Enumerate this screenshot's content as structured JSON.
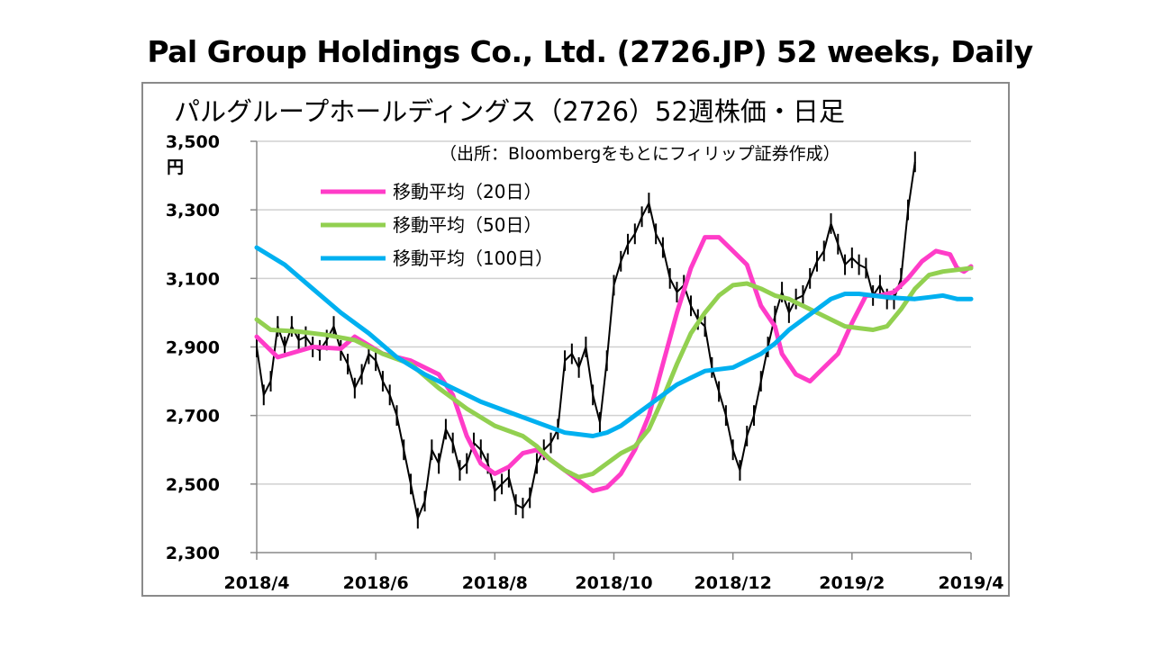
{
  "header": {
    "title": "Pal Group Holdings Co., Ltd. (2726.JP) 52 weeks, Daily"
  },
  "chart_data": {
    "type": "line",
    "title": "パルグループホールディングス（2726）52週株価・日足",
    "source_note": "（出所：Bloombergをもとにフィリップ証券作成）",
    "y_unit": "円",
    "ylim": [
      2300,
      3500
    ],
    "y_ticks": [
      2300,
      2500,
      2700,
      2900,
      3100,
      3300,
      3500
    ],
    "y_tick_labels": [
      "2,300",
      "2,500",
      "2,700",
      "2,900",
      "3,100",
      "3,300",
      "3,500"
    ],
    "x_tick_labels": [
      "2018/4",
      "2018/6",
      "2018/8",
      "2018/10",
      "2018/12",
      "2019/2",
      "2019/4"
    ],
    "grid": "horizontal",
    "legend_position": "top-left",
    "series": [
      {
        "name": "移動平均（20日）",
        "color": "#ff3cc8",
        "points": [
          [
            0,
            2930
          ],
          [
            3,
            2870
          ],
          [
            8,
            2900
          ],
          [
            12,
            2895
          ],
          [
            14,
            2930
          ],
          [
            18,
            2880
          ],
          [
            22,
            2860
          ],
          [
            26,
            2820
          ],
          [
            28,
            2760
          ],
          [
            30,
            2640
          ],
          [
            32,
            2560
          ],
          [
            34,
            2530
          ],
          [
            36,
            2550
          ],
          [
            38,
            2590
          ],
          [
            40,
            2600
          ],
          [
            42,
            2570
          ],
          [
            44,
            2540
          ],
          [
            46,
            2510
          ],
          [
            48,
            2480
          ],
          [
            50,
            2490
          ],
          [
            52,
            2530
          ],
          [
            54,
            2600
          ],
          [
            56,
            2700
          ],
          [
            58,
            2850
          ],
          [
            60,
            3000
          ],
          [
            62,
            3130
          ],
          [
            64,
            3220
          ],
          [
            66,
            3220
          ],
          [
            68,
            3180
          ],
          [
            70,
            3140
          ],
          [
            72,
            3020
          ],
          [
            74,
            2960
          ],
          [
            75,
            2880
          ],
          [
            77,
            2820
          ],
          [
            79,
            2800
          ],
          [
            81,
            2840
          ],
          [
            83,
            2880
          ],
          [
            85,
            2970
          ],
          [
            87,
            3050
          ],
          [
            89,
            3050
          ],
          [
            91,
            3060
          ],
          [
            93,
            3100
          ],
          [
            95,
            3150
          ],
          [
            97,
            3180
          ],
          [
            99,
            3170
          ],
          [
            100,
            3130
          ],
          [
            101,
            3120
          ],
          [
            102,
            3135
          ]
        ]
      },
      {
        "name": "移動平均（50日）",
        "color": "#92d050",
        "points": [
          [
            0,
            2980
          ],
          [
            2,
            2950
          ],
          [
            6,
            2945
          ],
          [
            10,
            2935
          ],
          [
            14,
            2920
          ],
          [
            18,
            2880
          ],
          [
            22,
            2850
          ],
          [
            26,
            2780
          ],
          [
            30,
            2720
          ],
          [
            34,
            2670
          ],
          [
            38,
            2640
          ],
          [
            40,
            2610
          ],
          [
            42,
            2570
          ],
          [
            44,
            2540
          ],
          [
            46,
            2520
          ],
          [
            48,
            2530
          ],
          [
            50,
            2560
          ],
          [
            52,
            2590
          ],
          [
            54,
            2610
          ],
          [
            56,
            2660
          ],
          [
            58,
            2750
          ],
          [
            60,
            2850
          ],
          [
            62,
            2940
          ],
          [
            64,
            3000
          ],
          [
            66,
            3050
          ],
          [
            68,
            3080
          ],
          [
            70,
            3085
          ],
          [
            72,
            3070
          ],
          [
            74,
            3050
          ],
          [
            76,
            3040
          ],
          [
            78,
            3020
          ],
          [
            80,
            3000
          ],
          [
            82,
            2980
          ],
          [
            84,
            2960
          ],
          [
            86,
            2955
          ],
          [
            88,
            2950
          ],
          [
            90,
            2960
          ],
          [
            92,
            3010
          ],
          [
            94,
            3070
          ],
          [
            96,
            3110
          ],
          [
            98,
            3120
          ],
          [
            100,
            3125
          ],
          [
            102,
            3130
          ]
        ]
      },
      {
        "name": "移動平均（100日）",
        "color": "#00b0f0",
        "points": [
          [
            0,
            3190
          ],
          [
            4,
            3140
          ],
          [
            8,
            3070
          ],
          [
            12,
            3000
          ],
          [
            16,
            2940
          ],
          [
            20,
            2870
          ],
          [
            24,
            2820
          ],
          [
            28,
            2780
          ],
          [
            32,
            2740
          ],
          [
            36,
            2710
          ],
          [
            40,
            2680
          ],
          [
            44,
            2650
          ],
          [
            48,
            2640
          ],
          [
            50,
            2650
          ],
          [
            52,
            2670
          ],
          [
            54,
            2700
          ],
          [
            56,
            2730
          ],
          [
            58,
            2760
          ],
          [
            60,
            2790
          ],
          [
            62,
            2810
          ],
          [
            64,
            2830
          ],
          [
            66,
            2835
          ],
          [
            68,
            2840
          ],
          [
            70,
            2860
          ],
          [
            72,
            2880
          ],
          [
            74,
            2910
          ],
          [
            76,
            2950
          ],
          [
            78,
            2980
          ],
          [
            80,
            3010
          ],
          [
            82,
            3040
          ],
          [
            84,
            3055
          ],
          [
            86,
            3055
          ],
          [
            88,
            3050
          ],
          [
            90,
            3045
          ],
          [
            92,
            3042
          ],
          [
            94,
            3040
          ],
          [
            96,
            3045
          ],
          [
            98,
            3050
          ],
          [
            100,
            3040
          ],
          [
            102,
            3040
          ]
        ]
      }
    ],
    "price_series": {
      "name": "日足",
      "color": "#000000",
      "points": [
        [
          0,
          2900
        ],
        [
          1,
          2760
        ],
        [
          2,
          2800
        ],
        [
          3,
          2960
        ],
        [
          4,
          2900
        ],
        [
          5,
          2960
        ],
        [
          6,
          2920
        ],
        [
          7,
          2930
        ],
        [
          8,
          2900
        ],
        [
          9,
          2890
        ],
        [
          10,
          2920
        ],
        [
          11,
          2960
        ],
        [
          12,
          2890
        ],
        [
          13,
          2850
        ],
        [
          14,
          2780
        ],
        [
          15,
          2820
        ],
        [
          16,
          2880
        ],
        [
          17,
          2860
        ],
        [
          18,
          2800
        ],
        [
          19,
          2760
        ],
        [
          20,
          2700
        ],
        [
          21,
          2600
        ],
        [
          22,
          2500
        ],
        [
          23,
          2400
        ],
        [
          24,
          2450
        ],
        [
          25,
          2600
        ],
        [
          26,
          2560
        ],
        [
          27,
          2660
        ],
        [
          28,
          2620
        ],
        [
          29,
          2540
        ],
        [
          30,
          2560
        ],
        [
          31,
          2620
        ],
        [
          32,
          2600
        ],
        [
          33,
          2560
        ],
        [
          34,
          2480
        ],
        [
          35,
          2500
        ],
        [
          36,
          2520
        ],
        [
          37,
          2440
        ],
        [
          38,
          2430
        ],
        [
          39,
          2460
        ],
        [
          40,
          2560
        ],
        [
          41,
          2600
        ],
        [
          42,
          2620
        ],
        [
          43,
          2660
        ],
        [
          44,
          2860
        ],
        [
          45,
          2880
        ],
        [
          46,
          2840
        ],
        [
          47,
          2900
        ],
        [
          48,
          2760
        ],
        [
          49,
          2680
        ],
        [
          50,
          2860
        ],
        [
          51,
          3080
        ],
        [
          52,
          3150
        ],
        [
          53,
          3200
        ],
        [
          54,
          3230
        ],
        [
          55,
          3280
        ],
        [
          56,
          3320
        ],
        [
          57,
          3230
        ],
        [
          58,
          3190
        ],
        [
          59,
          3100
        ],
        [
          60,
          3060
        ],
        [
          61,
          3080
        ],
        [
          62,
          3020
        ],
        [
          63,
          2980
        ],
        [
          64,
          2960
        ],
        [
          65,
          2840
        ],
        [
          66,
          2770
        ],
        [
          67,
          2700
        ],
        [
          68,
          2600
        ],
        [
          69,
          2540
        ],
        [
          70,
          2640
        ],
        [
          71,
          2700
        ],
        [
          72,
          2800
        ],
        [
          73,
          2900
        ],
        [
          74,
          2990
        ],
        [
          75,
          3060
        ],
        [
          76,
          3000
        ],
        [
          77,
          3040
        ],
        [
          78,
          3050
        ],
        [
          79,
          3100
        ],
        [
          80,
          3150
        ],
        [
          81,
          3180
        ],
        [
          82,
          3260
        ],
        [
          83,
          3200
        ],
        [
          84,
          3140
        ],
        [
          85,
          3160
        ],
        [
          86,
          3140
        ],
        [
          87,
          3130
        ],
        [
          88,
          3050
        ],
        [
          89,
          3080
        ],
        [
          90,
          3040
        ],
        [
          91,
          3040
        ],
        [
          92,
          3100
        ],
        [
          93,
          3300
        ],
        [
          94,
          3440
        ]
      ]
    }
  }
}
